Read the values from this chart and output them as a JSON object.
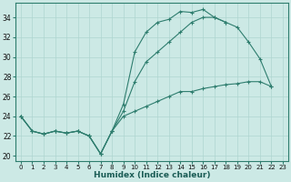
{
  "title": "",
  "xlabel": "Humidex (Indice chaleur)",
  "ylabel": "",
  "background_color": "#cce9e5",
  "grid_color": "#b8dbd7",
  "line_color": "#2e7d6e",
  "xlim": [
    -0.5,
    23.5
  ],
  "ylim": [
    19.5,
    35.5
  ],
  "xticks": [
    0,
    1,
    2,
    3,
    4,
    5,
    6,
    7,
    8,
    9,
    10,
    11,
    12,
    13,
    14,
    15,
    16,
    17,
    18,
    19,
    20,
    21,
    22,
    23
  ],
  "yticks": [
    20,
    22,
    24,
    26,
    28,
    30,
    32,
    34
  ],
  "line1_y": [
    24.0,
    22.5,
    22.2,
    22.5,
    22.3,
    22.5,
    22.0,
    20.2,
    22.5,
    25.2,
    30.5,
    32.5,
    33.5,
    33.8,
    34.6,
    34.5,
    34.8,
    34.0,
    33.5,
    null,
    null,
    null,
    null,
    null
  ],
  "line2_y": [
    24.0,
    22.5,
    22.2,
    22.5,
    22.3,
    22.5,
    22.0,
    20.2,
    22.5,
    24.5,
    27.5,
    29.5,
    30.5,
    31.5,
    32.5,
    33.5,
    34.0,
    34.0,
    33.5,
    33.0,
    31.5,
    29.8,
    27.0,
    null
  ],
  "line3_y": [
    24.0,
    22.5,
    22.2,
    22.5,
    22.3,
    22.5,
    22.0,
    20.2,
    22.5,
    24.0,
    24.5,
    25.0,
    25.5,
    26.0,
    26.5,
    26.5,
    26.8,
    27.0,
    27.2,
    27.3,
    27.5,
    27.5,
    27.0,
    null
  ]
}
